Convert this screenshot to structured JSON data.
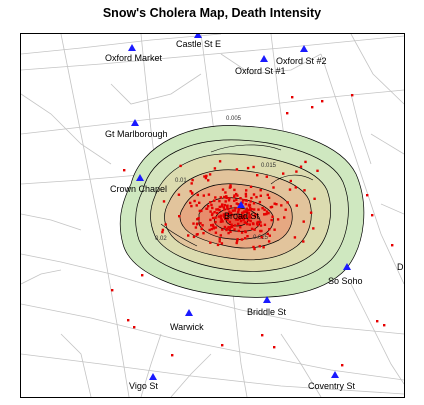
{
  "title": "Snow's Cholera Map, Death Intensity",
  "colors": {
    "street": "#c4c4c4",
    "pump": "#1a1aff",
    "death": "#e60000",
    "contour": "#000000",
    "density_low": "#cfe8c0",
    "density_high": "#e8503a"
  },
  "pumps": [
    {
      "name": "Oxford Market",
      "icon": "pump-triangle-icon"
    },
    {
      "name": "Castle St E",
      "icon": "pump-triangle-icon"
    },
    {
      "name": "Oxford St #1",
      "icon": "pump-triangle-icon"
    },
    {
      "name": "Oxford St #2",
      "icon": "pump-triangle-icon"
    },
    {
      "name": "Gt Marlborough",
      "icon": "pump-triangle-icon"
    },
    {
      "name": "Crown Chapel",
      "icon": "pump-triangle-icon"
    },
    {
      "name": "Broad St",
      "icon": "pump-triangle-icon"
    },
    {
      "name": "So Soho",
      "icon": "pump-triangle-icon"
    },
    {
      "name": "Warwick",
      "icon": "pump-triangle-icon"
    },
    {
      "name": "Briddle St",
      "icon": "pump-triangle-icon"
    },
    {
      "name": "Vigo St",
      "icon": "pump-triangle-icon"
    },
    {
      "name": "Coventry St",
      "icon": "pump-triangle-icon"
    },
    {
      "name": "D",
      "icon": "pump-triangle-icon"
    }
  ],
  "contour_labels": [
    "0.005",
    "0.01",
    "0.015",
    "0.025",
    "0.02"
  ]
}
